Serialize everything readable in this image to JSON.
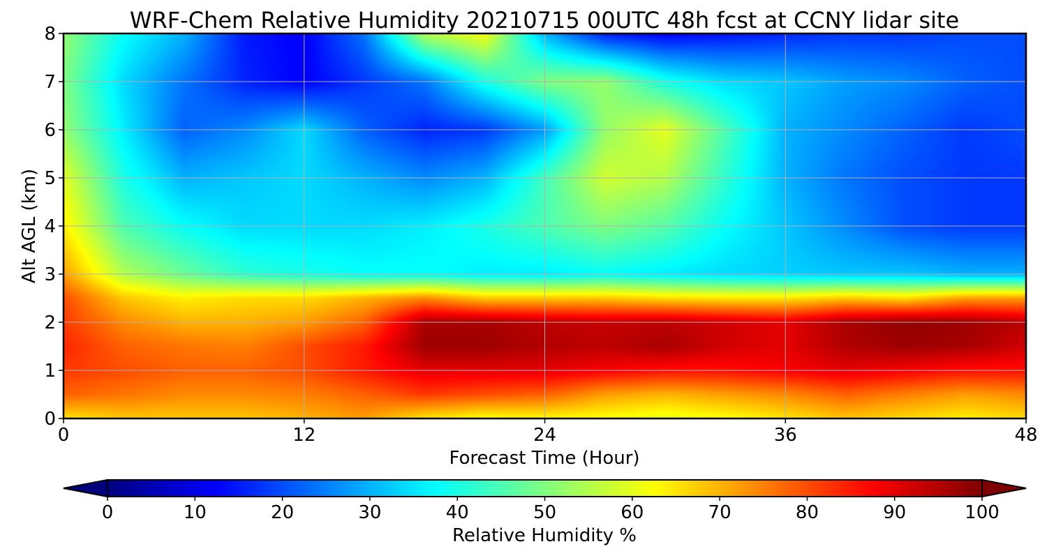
{
  "chart_data": {
    "type": "heatmap",
    "title": "WRF-Chem Relative Humidity 20210715 00UTC 48h fcst at CCNY lidar site",
    "xlabel": "Forecast Time (Hour)",
    "ylabel": "Alt AGL (km)",
    "xlim": [
      0,
      48
    ],
    "ylim": [
      0,
      8
    ],
    "xticks": [
      "0",
      "12",
      "24",
      "36",
      "48"
    ],
    "yticks": [
      "0",
      "1",
      "2",
      "3",
      "4",
      "5",
      "6",
      "7",
      "8"
    ],
    "grid": true,
    "colormap": "jet",
    "colorbar": {
      "label": "Relative Humidity %",
      "range": [
        0,
        100
      ],
      "ticks": [
        "0",
        "10",
        "20",
        "30",
        "40",
        "50",
        "60",
        "70",
        "80",
        "90",
        "100"
      ],
      "extend": "both",
      "orientation": "horizontal"
    },
    "x_hours": [
      0,
      3,
      6,
      9,
      12,
      15,
      18,
      21,
      24,
      27,
      30,
      33,
      36,
      39,
      42,
      45,
      48
    ],
    "y_km": [
      0,
      0.5,
      1,
      1.5,
      2,
      2.5,
      3,
      4,
      5,
      6,
      7,
      8
    ],
    "values": [
      [
        65,
        68,
        68,
        68,
        70,
        72,
        65,
        62,
        63,
        62,
        60,
        62,
        65,
        68,
        66,
        64,
        66
      ],
      [
        78,
        76,
        74,
        74,
        75,
        78,
        82,
        80,
        78,
        72,
        70,
        72,
        74,
        78,
        75,
        72,
        74
      ],
      [
        82,
        80,
        78,
        78,
        80,
        85,
        90,
        90,
        90,
        88,
        86,
        86,
        88,
        90,
        88,
        86,
        86
      ],
      [
        84,
        78,
        76,
        75,
        80,
        85,
        97,
        97,
        95,
        94,
        96,
        92,
        90,
        95,
        97,
        96,
        92
      ],
      [
        82,
        74,
        70,
        70,
        72,
        78,
        96,
        96,
        94,
        93,
        94,
        92,
        90,
        96,
        98,
        97,
        94
      ],
      [
        80,
        68,
        64,
        66,
        66,
        70,
        74,
        68,
        68,
        68,
        66,
        65,
        65,
        68,
        66,
        72,
        72
      ],
      [
        72,
        55,
        48,
        42,
        40,
        38,
        38,
        36,
        36,
        38,
        36,
        34,
        33,
        32,
        32,
        30,
        30
      ],
      [
        64,
        45,
        38,
        34,
        34,
        34,
        36,
        40,
        45,
        50,
        46,
        38,
        32,
        26,
        20,
        18,
        18
      ],
      [
        60,
        40,
        30,
        32,
        34,
        30,
        26,
        30,
        44,
        58,
        55,
        42,
        30,
        24,
        20,
        18,
        18
      ],
      [
        52,
        36,
        22,
        26,
        34,
        22,
        16,
        18,
        28,
        52,
        60,
        45,
        30,
        26,
        22,
        18,
        20
      ],
      [
        50,
        34,
        24,
        16,
        12,
        18,
        24,
        40,
        50,
        52,
        40,
        34,
        32,
        28,
        26,
        22,
        20
      ],
      [
        52,
        38,
        30,
        15,
        12,
        24,
        55,
        62,
        30,
        15,
        12,
        14,
        16,
        18,
        18,
        20,
        20
      ]
    ]
  }
}
